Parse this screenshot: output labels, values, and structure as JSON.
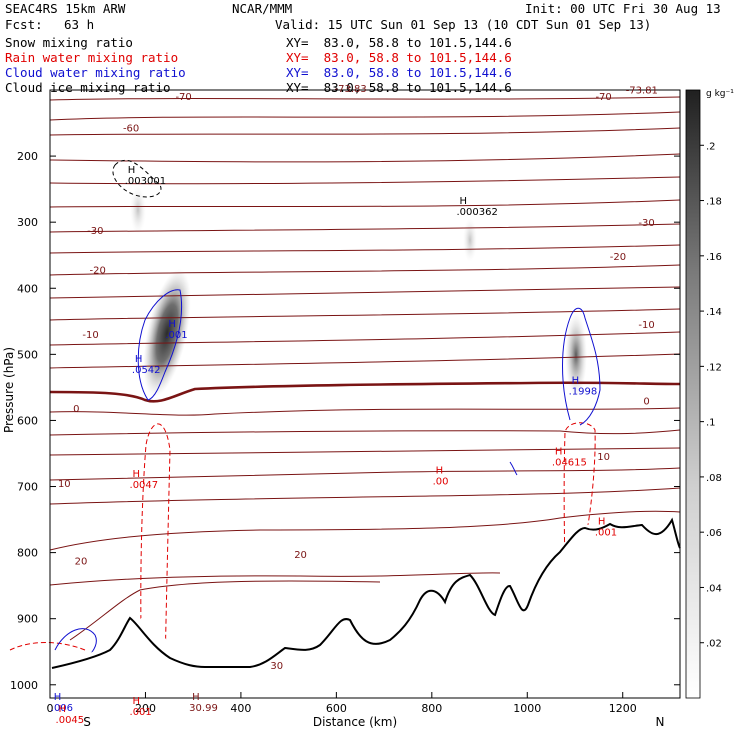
{
  "header": {
    "model": "SEAC4RS 15km ARW",
    "center": "NCAR/MMM",
    "init": "Init: 00 UTC Fri 30 Aug 13",
    "fcst_label": "Fcst:",
    "fcst_value": "63 h",
    "valid": "Valid: 15 UTC Sun 01 Sep 13 (10 CDT Sun 01 Sep 13)"
  },
  "fields": [
    {
      "name": "Snow mixing ratio",
      "xy": "XY=  83.0, 58.8 to 101.5,144.6",
      "color": "#000000"
    },
    {
      "name": "Rain water mixing ratio",
      "xy": "XY=  83.0, 58.8 to 101.5,144.6",
      "color": "#e00000"
    },
    {
      "name": "Cloud water mixing ratio",
      "xy": "XY=  83.0, 58.8 to 101.5,144.6",
      "color": "#1010d0"
    },
    {
      "name": "Cloud ice mixing ratio",
      "xy": "XY=  83.0, 58.8 to 101.5,144.6",
      "color": "#000000"
    }
  ],
  "colors": {
    "temperature": "#7a1414",
    "rain": "#e00000",
    "cloud_water": "#1010d0",
    "terrain": "#000000"
  },
  "chart_data": {
    "type": "cross-section",
    "xlabel": "Distance (km)",
    "ylabel": "Pressure (hPa)",
    "xlim": [
      0,
      1320
    ],
    "ylim": [
      100,
      1020
    ],
    "x_ticks": [
      "0",
      "200",
      "400",
      "600",
      "800",
      "1000",
      "1200"
    ],
    "y_ticks": [
      "200",
      "300",
      "400",
      "500",
      "600",
      "700",
      "800",
      "900",
      "1000"
    ],
    "endpoints": {
      "left": "S",
      "right": "N"
    },
    "colorbar": {
      "units": "g kg⁻¹",
      "ticks": [
        ".02",
        ".04",
        ".06",
        ".08",
        ".1",
        ".12",
        ".14",
        ".16",
        ".18",
        ".2"
      ],
      "range": [
        0,
        0.22
      ]
    },
    "temperature_labels": [
      {
        "text": "-70",
        "x": 280,
        "p": 115
      },
      {
        "text": "-70",
        "x": 1160,
        "p": 115
      },
      {
        "text": "-73.81",
        "x": 1240,
        "p": 105
      },
      {
        "text": "-73.83",
        "x": 630,
        "p": 103
      },
      {
        "text": "-60",
        "x": 170,
        "p": 163
      },
      {
        "text": "-30",
        "x": 95,
        "p": 318
      },
      {
        "text": "-30",
        "x": 1250,
        "p": 306
      },
      {
        "text": "-20",
        "x": 100,
        "p": 378
      },
      {
        "text": "-20",
        "x": 1190,
        "p": 357
      },
      {
        "text": "-10",
        "x": 85,
        "p": 475
      },
      {
        "text": "-10",
        "x": 1250,
        "p": 460
      },
      {
        "text": "0",
        "x": 55,
        "p": 587
      },
      {
        "text": "0",
        "x": 1250,
        "p": 576
      },
      {
        "text": "10",
        "x": 30,
        "p": 701
      },
      {
        "text": "10",
        "x": 1160,
        "p": 660
      },
      {
        "text": "20",
        "x": 65,
        "p": 818
      },
      {
        "text": "20",
        "x": 525,
        "p": 808
      },
      {
        "text": "30",
        "x": 475,
        "p": 976
      }
    ],
    "annotations": [
      {
        "text": ".003001",
        "x": 165,
        "p": 242,
        "color": "#000000"
      },
      {
        "text": ".000362",
        "x": 860,
        "p": 289,
        "color": "#000000"
      },
      {
        "text": ".001",
        "x": 250,
        "p": 475,
        "color": "#1010d0"
      },
      {
        "text": ".0542",
        "x": 180,
        "p": 528,
        "color": "#1010d0"
      },
      {
        "text": ".1998",
        "x": 1095,
        "p": 561,
        "color": "#1010d0"
      },
      {
        "text": ".04615",
        "x": 1060,
        "p": 668,
        "color": "#e00000"
      },
      {
        "text": ".0047",
        "x": 175,
        "p": 702,
        "color": "#e00000"
      },
      {
        "text": ".00",
        "x": 810,
        "p": 697,
        "color": "#e00000"
      },
      {
        "text": ".001",
        "x": 1150,
        "p": 774,
        "color": "#e00000"
      },
      {
        "text": ".001",
        "x": 175,
        "p": 1046,
        "color": "#e00000"
      },
      {
        "text": "30.99",
        "x": 300,
        "p": 1040,
        "color": "#7a1414"
      },
      {
        "text": ".006",
        "x": 10,
        "p": 1040,
        "color": "#1010d0"
      },
      {
        "text": ".0045",
        "x": 20,
        "p": 1058,
        "color": "#e00000"
      }
    ]
  }
}
